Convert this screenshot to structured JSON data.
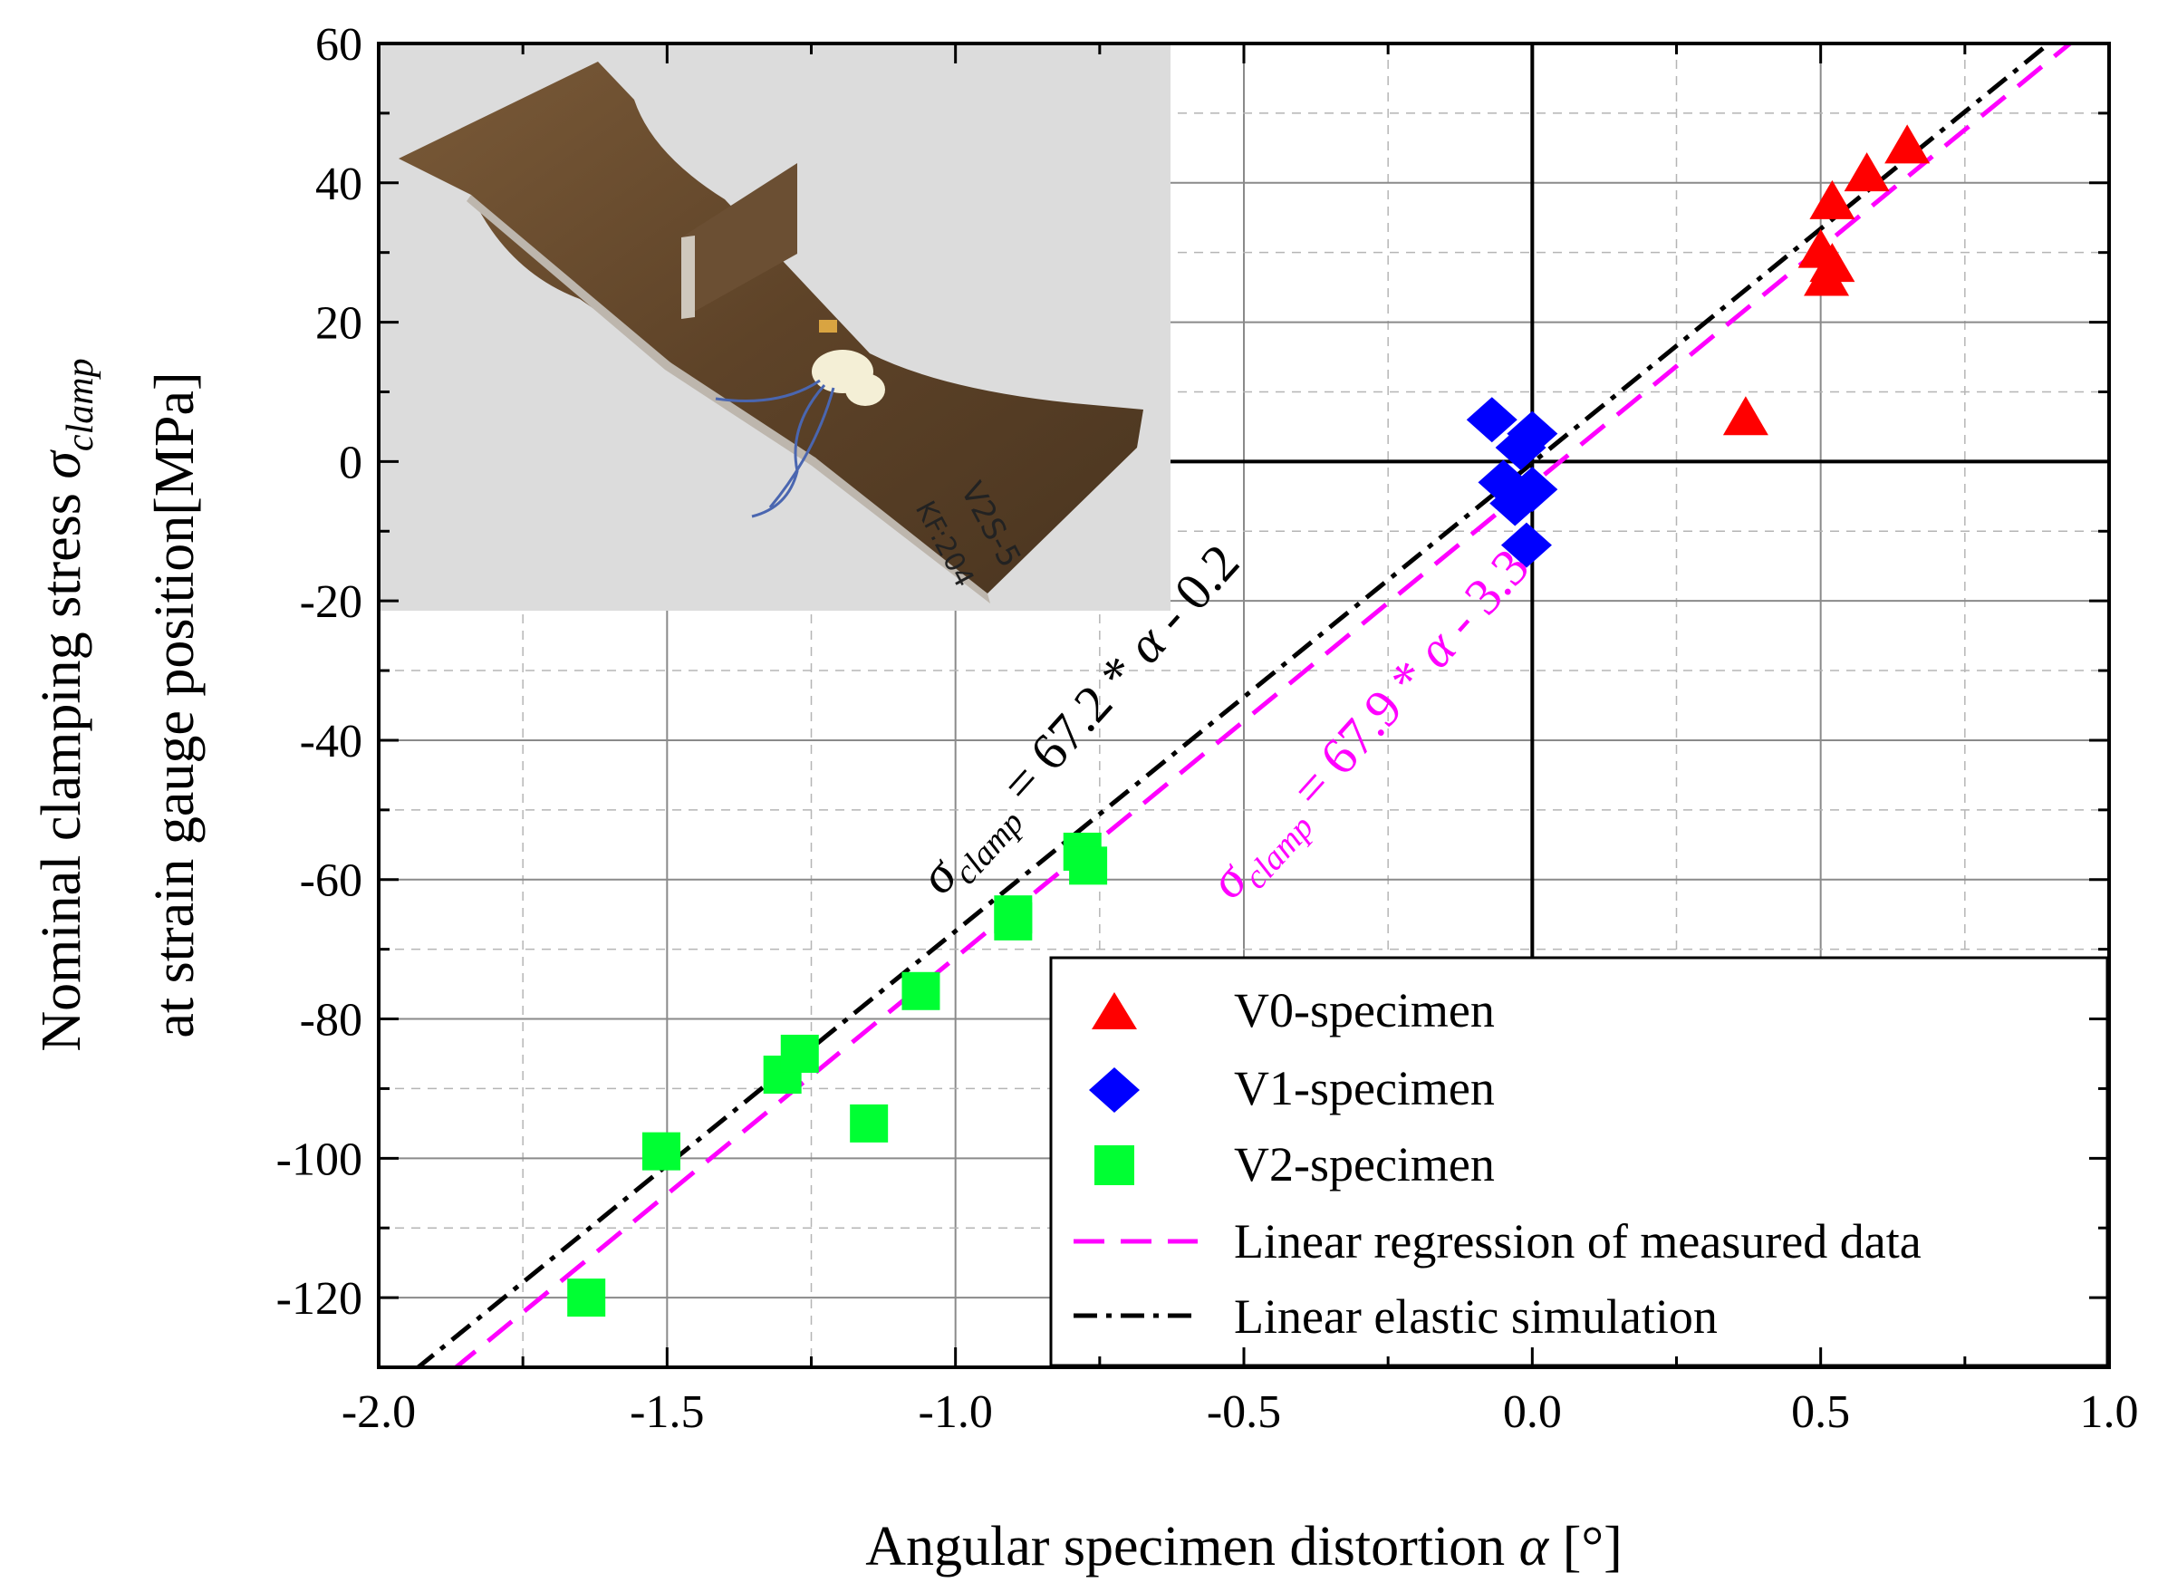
{
  "chart_data": {
    "type": "scatter",
    "title": "",
    "xlabel": {
      "prefix": "Angular specimen distortion ",
      "symbol": "α",
      "suffix": " [°]"
    },
    "ylabel": {
      "line1_prefix": "Nominal clamping stress ",
      "line1_symbol": "σ",
      "line1_sub": "clamp",
      "line2": "at strain gauge position[MPa]"
    },
    "xlim": [
      -2.0,
      1.0
    ],
    "ylim": [
      -130,
      60
    ],
    "x_ticks": [
      -2.0,
      -1.5,
      -1.0,
      -0.5,
      0.0,
      0.5,
      1.0
    ],
    "x_tick_labels": [
      "-2.0",
      "-1.5",
      "-1.0",
      "-0.5",
      "0.0",
      "0.5",
      "1.0"
    ],
    "y_ticks": [
      -120,
      -100,
      -80,
      -60,
      -40,
      -20,
      0,
      20,
      40,
      60
    ],
    "y_tick_labels": [
      "-120",
      "-100",
      "-80",
      "-60",
      "-40",
      "-20",
      "0",
      "20",
      "40",
      "60"
    ],
    "grid": true,
    "series": [
      {
        "name": "V0-specimen",
        "marker": "triangle",
        "color": "#ff0000",
        "points": [
          [
            0.37,
            6
          ],
          [
            0.5,
            30
          ],
          [
            0.51,
            26
          ],
          [
            0.52,
            37
          ],
          [
            0.52,
            28
          ],
          [
            0.58,
            41
          ],
          [
            0.65,
            45
          ]
        ]
      },
      {
        "name": "V1-specimen",
        "marker": "diamond",
        "color": "#0000ff",
        "points": [
          [
            -0.07,
            6
          ],
          [
            0.0,
            4
          ],
          [
            -0.02,
            2
          ],
          [
            -0.05,
            -3
          ],
          [
            0.0,
            -4
          ],
          [
            -0.03,
            -6
          ],
          [
            -0.01,
            -12
          ]
        ]
      },
      {
        "name": "V2-specimen",
        "marker": "square",
        "color": "#00ff33",
        "points": [
          [
            -1.64,
            -120
          ],
          [
            -1.51,
            -99
          ],
          [
            -1.3,
            -88
          ],
          [
            -1.27,
            -85
          ],
          [
            -1.15,
            -95
          ],
          [
            -1.06,
            -76
          ],
          [
            -0.9,
            -65
          ],
          [
            -0.9,
            -66
          ],
          [
            -0.78,
            -56
          ],
          [
            -0.77,
            -58
          ]
        ]
      }
    ],
    "lines": [
      {
        "name": "Linear regression of measured data",
        "style": "dashed",
        "color": "#ff00ff",
        "slope": 67.9,
        "intercept": -3.3
      },
      {
        "name": "Linear elastic simulation",
        "style": "dashdot",
        "color": "#000000",
        "slope": 67.2,
        "intercept": -0.2
      }
    ],
    "annotations": [
      {
        "prefix": "σ",
        "sub": "clamp",
        "text": " = 67.2 * ",
        "symbol": "α",
        "tail": " - 0.2",
        "color": "#000000"
      },
      {
        "prefix": "σ",
        "sub": "clamp",
        "text": " = 67.9 * ",
        "symbol": "α",
        "tail": " - 3.3",
        "color": "#ff00ff"
      }
    ],
    "legend_position": "bottom-right",
    "inset": {
      "label": "V2S-5",
      "label2": "KF:204"
    }
  }
}
